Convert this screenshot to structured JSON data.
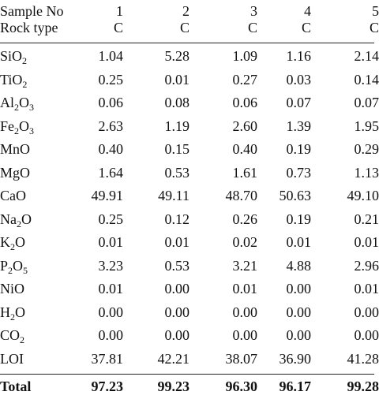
{
  "header": {
    "sample_label": "Sample No",
    "sample_values": [
      "1",
      "2",
      "3",
      "4",
      "5"
    ],
    "rock_label": "Rock type",
    "rock_values": [
      "C",
      "C",
      "C",
      "C",
      "C"
    ]
  },
  "rows": [
    {
      "label_main": "SiO",
      "label_sub": "2",
      "label_tail": "",
      "values": [
        "1.04",
        "5.28",
        "1.09",
        "1.16",
        "2.14"
      ]
    },
    {
      "label_main": "TiO",
      "label_sub": "2",
      "label_tail": "",
      "values": [
        "0.25",
        "0.01",
        "0.27",
        "0.03",
        "0.14"
      ]
    },
    {
      "label_main": "Al",
      "label_sub": "2",
      "label_tail": "O",
      "label_sub2": "3",
      "values": [
        "0.06",
        "0.08",
        "0.06",
        "0.07",
        "0.07"
      ]
    },
    {
      "label_main": "Fe",
      "label_sub": "2",
      "label_tail": "O",
      "label_sub2": "3",
      "values": [
        "2.63",
        "1.19",
        "2.60",
        "1.39",
        "1.95"
      ]
    },
    {
      "label_main": "MnO",
      "label_sub": "",
      "label_tail": "",
      "values": [
        "0.40",
        "0.15",
        "0.40",
        "0.19",
        "0.29"
      ]
    },
    {
      "label_main": "MgO",
      "label_sub": "",
      "label_tail": "",
      "values": [
        "1.64",
        "0.53",
        "1.61",
        "0.73",
        "1.13"
      ]
    },
    {
      "label_main": "CaO",
      "label_sub": "",
      "label_tail": "",
      "values": [
        "49.91",
        "49.11",
        "48.70",
        "50.63",
        "49.10"
      ]
    },
    {
      "label_main": "Na",
      "label_sub": "2",
      "label_tail": "O",
      "values": [
        "0.25",
        "0.12",
        "0.26",
        "0.19",
        "0.21"
      ]
    },
    {
      "label_main": "K",
      "label_sub": "2",
      "label_tail": "O",
      "values": [
        "0.01",
        "0.01",
        "0.02",
        "0.01",
        "0.01"
      ]
    },
    {
      "label_main": "P",
      "label_sub": "2",
      "label_tail": "O",
      "label_sub2": "5",
      "values": [
        "3.23",
        "0.53",
        "3.21",
        "4.88",
        "2.96"
      ]
    },
    {
      "label_main": "NiO",
      "label_sub": "",
      "label_tail": "",
      "values": [
        "0.01",
        "0.00",
        "0.01",
        "0.00",
        "0.01"
      ]
    },
    {
      "label_main": "H",
      "label_sub": "2",
      "label_tail": "O",
      "values": [
        "0.00",
        "0.00",
        "0.00",
        "0.00",
        "0.00"
      ]
    },
    {
      "label_main": "CO",
      "label_sub": "2",
      "label_tail": "",
      "values": [
        "0.00",
        "0.00",
        "0.00",
        "0.00",
        "0.00"
      ]
    },
    {
      "label_main": "LOI",
      "label_sub": "",
      "label_tail": "",
      "values": [
        "37.81",
        "42.21",
        "38.07",
        "36.90",
        "41.28"
      ]
    }
  ],
  "total": {
    "label": "Total",
    "values": [
      "97.23",
      "99.23",
      "96.30",
      "96.17",
      "99.28"
    ]
  }
}
